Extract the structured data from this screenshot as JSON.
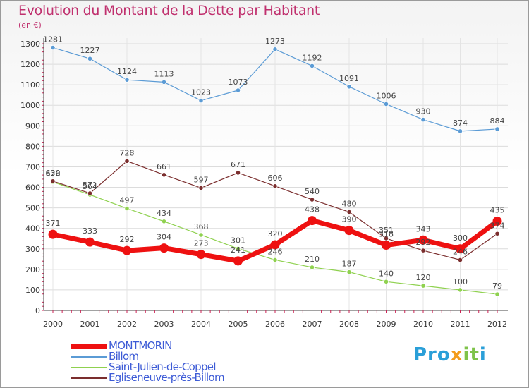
{
  "header": {
    "title": "Evolution du Montant de la Dette par Habitant",
    "unit": "(en €)"
  },
  "logo": {
    "text_part1": "Pro",
    "text_part2": "x",
    "text_part3": "it",
    "text_part4": "i"
  },
  "colors": {
    "title": "#c0306e",
    "axis": "#333333",
    "grid": "#dddddd",
    "legend_text": "#3d5bd6"
  },
  "chart_data": {
    "type": "line",
    "title": "Evolution du Montant de la Dette par Habitant",
    "ylabel": "(en €)",
    "xlabel": "",
    "x": [
      "2000",
      "2001",
      "2002",
      "2003",
      "2004",
      "2005",
      "2006",
      "2007",
      "2008",
      "2009",
      "2010",
      "2011",
      "2012"
    ],
    "ylim": [
      0,
      1300
    ],
    "yticks": [
      0,
      100,
      200,
      300,
      400,
      500,
      600,
      700,
      800,
      900,
      1000,
      1100,
      1200,
      1300
    ],
    "grid": true,
    "legend_position": "bottom-left",
    "series": [
      {
        "name": "Billom",
        "color": "#5b9bd5",
        "width": 1.2,
        "values": [
          1281,
          1227,
          1124,
          1113,
          1023,
          1073,
          1273,
          1192,
          1091,
          1006,
          930,
          874,
          884
        ]
      },
      {
        "name": "Saint-Julien-de-Coppel",
        "color": "#8fd14f",
        "width": 1.2,
        "values": [
          626,
          564,
          497,
          434,
          368,
          301,
          246,
          210,
          187,
          140,
          120,
          100,
          79
        ]
      },
      {
        "name": "Egliseneuve-près-Billom",
        "color": "#7b2e2e",
        "width": 1.2,
        "values": [
          630,
          571,
          728,
          661,
          597,
          671,
          606,
          540,
          480,
          351,
          292,
          246,
          374
        ]
      },
      {
        "name": "MONTMORIN",
        "color": "#ee1111",
        "width": 7,
        "values": [
          371,
          333,
          292,
          304,
          273,
          241,
          320,
          438,
          390,
          318,
          343,
          300,
          435
        ]
      }
    ],
    "labels": {
      "Billom": [
        "1281",
        "1227",
        "1124",
        "1113",
        "1023",
        "1073",
        "1273",
        "1192",
        "1091",
        "1006",
        "930",
        "874",
        "884"
      ],
      "Saint-Julien-de-Coppel": [
        "626",
        "564",
        "497",
        "434",
        "368",
        "301",
        "246",
        "210",
        "187",
        "140",
        "120",
        "100",
        "79"
      ],
      "Egliseneuve-près-Billom": [
        "630",
        "571",
        "728",
        "661",
        "597",
        "671",
        "606",
        "540",
        "480",
        "351",
        "292",
        "246",
        "374"
      ],
      "MONTMORIN": [
        "371",
        "333",
        "292",
        "304",
        "273",
        "241",
        "320",
        "438",
        "390",
        "318",
        "343",
        "300",
        "435"
      ]
    }
  },
  "legend": [
    {
      "label": "MONTMORIN",
      "color": "#ee1111",
      "thickness": 8
    },
    {
      "label": "Billom",
      "color": "#5b9bd5",
      "thickness": 2
    },
    {
      "label": "Saint-Julien-de-Coppel",
      "color": "#8fd14f",
      "thickness": 2
    },
    {
      "label": "Egliseneuve-près-Billom",
      "color": "#7b2e2e",
      "thickness": 2
    }
  ]
}
